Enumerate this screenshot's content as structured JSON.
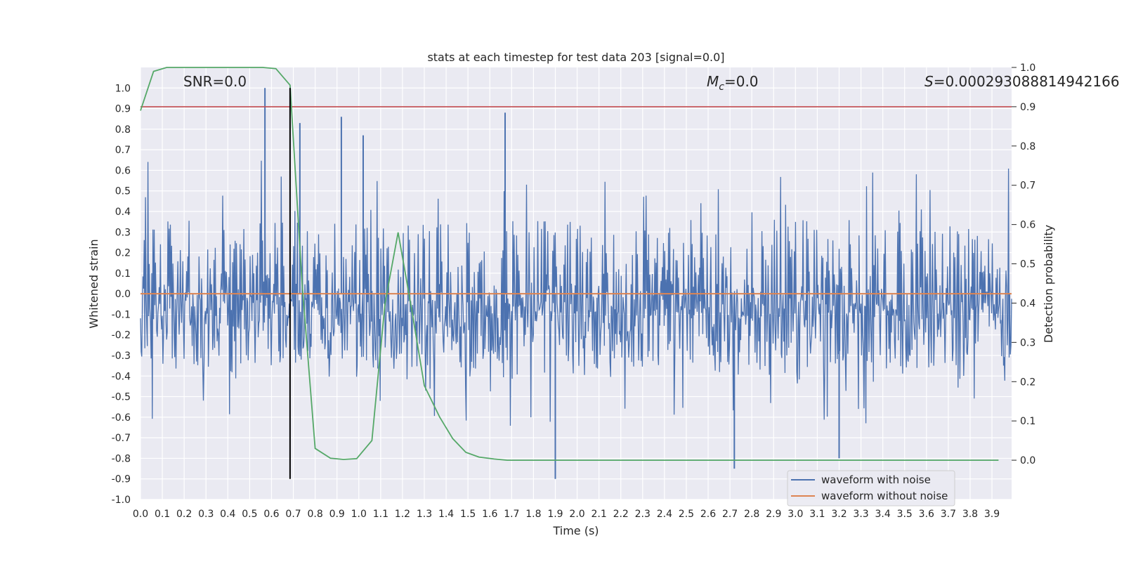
{
  "chart_data": {
    "type": "line",
    "title": "stats at each timestep for test data 203 [signal=0.0]",
    "xlabel": "Time (s)",
    "ylabel": "Whitened strain",
    "y2label": "Detection probability",
    "xlim": [
      0.0,
      3.99
    ],
    "ylim": [
      -1.0,
      1.1
    ],
    "y2lim": [
      -0.1,
      1.0
    ],
    "x_ticks": [
      "0.0",
      "0.1",
      "0.2",
      "0.3",
      "0.4",
      "0.5",
      "0.6",
      "0.7",
      "0.8",
      "0.9",
      "1.0",
      "1.1",
      "1.2",
      "1.3",
      "1.4",
      "1.5",
      "1.6",
      "1.7",
      "1.8",
      "1.9",
      "2.0",
      "2.1",
      "2.2",
      "2.3",
      "2.4",
      "2.5",
      "2.6",
      "2.7",
      "2.8",
      "2.9",
      "3.0",
      "3.1",
      "3.2",
      "3.3",
      "3.4",
      "3.5",
      "3.6",
      "3.7",
      "3.8",
      "3.9"
    ],
    "y_ticks": [
      "-1.0",
      "-0.9",
      "-0.8",
      "-0.7",
      "-0.6",
      "-0.5",
      "-0.4",
      "-0.3",
      "-0.2",
      "-0.1",
      "0.0",
      "0.1",
      "0.2",
      "0.3",
      "0.4",
      "0.5",
      "0.6",
      "0.7",
      "0.8",
      "0.9",
      "1.0"
    ],
    "y2_ticks": [
      "0.0",
      "0.1",
      "0.2",
      "0.3",
      "0.4",
      "0.5",
      "0.6",
      "0.7",
      "0.8",
      "0.9",
      "1.0"
    ],
    "grid": true,
    "legend_position": "bottom-right",
    "annotations": {
      "snr": "SNR=0.0",
      "mc_symbol": "M",
      "mc_subscript": "c",
      "mc_value": "=0.0",
      "s_symbol": "S",
      "s_value": "=0.000293088814942166"
    },
    "threshold": 0.9,
    "marker_time": 0.685,
    "series": [
      {
        "name": "waveform with noise",
        "color": "#4c72b0",
        "description": "dense noise trace spanning roughly -0.9 to 1.0",
        "notable_points": [
          {
            "x": 0.57,
            "y": 1.0
          },
          {
            "x": 0.73,
            "y": 0.83
          },
          {
            "x": 0.92,
            "y": 0.86
          },
          {
            "x": 1.02,
            "y": 0.77
          },
          {
            "x": 1.67,
            "y": 0.88
          },
          {
            "x": 1.9,
            "y": -0.9
          },
          {
            "x": 2.72,
            "y": -0.85
          },
          {
            "x": 3.2,
            "y": -0.8
          }
        ]
      },
      {
        "name": "waveform without noise",
        "color": "#dd8452",
        "x": [
          0.0,
          3.99
        ],
        "y": [
          0.0,
          0.0
        ]
      },
      {
        "color": "#55a868",
        "axis": "y2",
        "x": [
          0.0,
          0.06,
          0.12,
          0.19,
          0.25,
          0.31,
          0.37,
          0.44,
          0.5,
          0.56,
          0.62,
          0.685,
          0.74,
          0.8,
          0.87,
          0.93,
          0.99,
          1.06,
          1.12,
          1.18,
          1.24,
          1.3,
          1.37,
          1.43,
          1.49,
          1.55,
          1.62,
          1.68,
          1.74,
          3.93
        ],
        "y": [
          0.89,
          0.99,
          1.0,
          1.0,
          1.0,
          1.0,
          1.0,
          1.0,
          1.0,
          1.0,
          0.997,
          0.955,
          0.45,
          0.03,
          0.005,
          0.002,
          0.004,
          0.05,
          0.4,
          0.58,
          0.39,
          0.19,
          0.11,
          0.055,
          0.02,
          0.008,
          0.003,
          0.0,
          0.0,
          0.0
        ]
      },
      {
        "color": "#c44e52",
        "axis": "y2",
        "x": [
          0.0,
          3.99
        ],
        "y": [
          0.9,
          0.9
        ]
      },
      {
        "color": "#000000",
        "x": [
          0.685,
          0.685
        ],
        "y": [
          -0.9,
          1.0
        ]
      }
    ]
  }
}
